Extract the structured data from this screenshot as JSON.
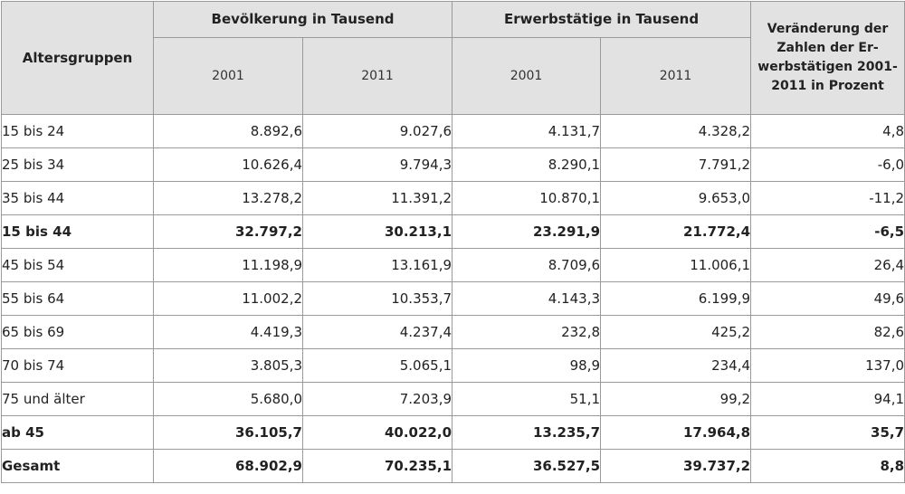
{
  "header": {
    "altersgruppen": "Altersgruppen",
    "bevoelkerung": "Bevölkerung in Tausend",
    "erwerbstaetige": "Erwerbstätige in Tausend",
    "veraenderung": "Veränderung der Zahlen der Er-werbstätigen 2001-2011 in Prozent",
    "year_2001": "2001",
    "year_2011": "2011"
  },
  "rows": [
    {
      "label": "15 bis 24",
      "bev2001": "8.892,6",
      "bev2011": "9.027,6",
      "erw2001": "4.131,7",
      "erw2011": "4.328,2",
      "change": "4,8",
      "bold": false
    },
    {
      "label": "25 bis 34",
      "bev2001": "10.626,4",
      "bev2011": "9.794,3",
      "erw2001": "8.290,1",
      "erw2011": "7.791,2",
      "change": "-6,0",
      "bold": false
    },
    {
      "label": "35 bis 44",
      "bev2001": "13.278,2",
      "bev2011": "11.391,2",
      "erw2001": "10.870,1",
      "erw2011": "9.653,0",
      "change": "-11,2",
      "bold": false
    },
    {
      "label": "15 bis 44",
      "bev2001": "32.797,2",
      "bev2011": "30.213,1",
      "erw2001": "23.291,9",
      "erw2011": "21.772,4",
      "change": "-6,5",
      "bold": true
    },
    {
      "label": "45 bis 54",
      "bev2001": "11.198,9",
      "bev2011": "13.161,9",
      "erw2001": "8.709,6",
      "erw2011": "11.006,1",
      "change": "26,4",
      "bold": false
    },
    {
      "label": "55 bis 64",
      "bev2001": "11.002,2",
      "bev2011": "10.353,7",
      "erw2001": "4.143,3",
      "erw2011": "6.199,9",
      "change": "49,6",
      "bold": false
    },
    {
      "label": "65 bis 69",
      "bev2001": "4.419,3",
      "bev2011": "4.237,4",
      "erw2001": "232,8",
      "erw2011": "425,2",
      "change": "82,6",
      "bold": false
    },
    {
      "label": "70 bis 74",
      "bev2001": "3.805,3",
      "bev2011": "5.065,1",
      "erw2001": "98,9",
      "erw2011": "234,4",
      "change": "137,0",
      "bold": false
    },
    {
      "label": "75 und älter",
      "bev2001": "5.680,0",
      "bev2011": "7.203,9",
      "erw2001": "51,1",
      "erw2011": "99,2",
      "change": "94,1",
      "bold": false
    },
    {
      "label": "ab 45",
      "bev2001": "36.105,7",
      "bev2011": "40.022,0",
      "erw2001": "13.235,7",
      "erw2011": "17.964,8",
      "change": "35,7",
      "bold": true
    },
    {
      "label": "Gesamt",
      "bev2001": "68.902,9",
      "bev2011": "70.235,1",
      "erw2001": "36.527,5",
      "erw2011": "39.737,2",
      "change": "8,8",
      "bold": true
    }
  ]
}
